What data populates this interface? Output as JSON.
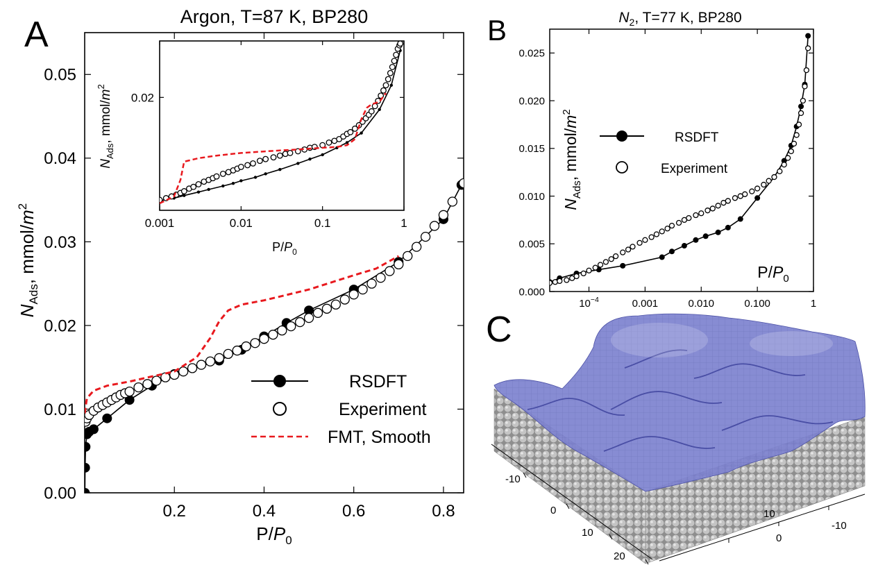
{
  "panels": {
    "A": {
      "letter": "A"
    },
    "B": {
      "letter": "B"
    },
    "C": {
      "letter": "C"
    }
  },
  "chart_data": [
    {
      "id": "A",
      "type": "line",
      "title": "Argon, T=87 K, BP280",
      "xlabel": "P/P0",
      "ylabel": "NAds, mmol/m2",
      "xlim": [
        0,
        0.845
      ],
      "ylim": [
        0,
        0.055
      ],
      "xticks": [
        0.2,
        0.4,
        0.6,
        0.8
      ],
      "xtick_labels": [
        "0.2",
        "0.4",
        "0.6",
        "0.8"
      ],
      "yticks": [
        0,
        0.01,
        0.02,
        0.03,
        0.04,
        0.05
      ],
      "ytick_labels": [
        "0.00",
        "0.01",
        "0.02",
        "0.03",
        "0.04",
        "0.05"
      ],
      "grid": false,
      "legend_position": "bottom-right",
      "legend": [
        "RSDFT",
        "Experiment",
        "FMT, Smooth"
      ],
      "series": [
        {
          "name": "RSDFT",
          "style": "line-filled-markers",
          "color": "#000000",
          "x": [
            0.0005,
            0.001,
            0.002,
            0.005,
            0.01,
            0.02,
            0.05,
            0.1,
            0.15,
            0.2,
            0.3,
            0.35,
            0.4,
            0.45,
            0.5,
            0.6,
            0.7,
            0.8,
            0.84
          ],
          "y": [
            0.0,
            0.003,
            0.0055,
            0.007,
            0.0073,
            0.0076,
            0.0089,
            0.0111,
            0.0128,
            0.0142,
            0.0158,
            0.0171,
            0.0187,
            0.0203,
            0.0218,
            0.0243,
            0.0276,
            0.0327,
            0.0368
          ]
        },
        {
          "name": "Experiment",
          "style": "open-markers",
          "color": "#000000",
          "x": [
            0.002,
            0.005,
            0.01,
            0.02,
            0.03,
            0.04,
            0.05,
            0.06,
            0.07,
            0.08,
            0.09,
            0.1,
            0.12,
            0.14,
            0.16,
            0.18,
            0.2,
            0.22,
            0.24,
            0.26,
            0.28,
            0.3,
            0.32,
            0.34,
            0.36,
            0.38,
            0.4,
            0.42,
            0.44,
            0.46,
            0.48,
            0.5,
            0.52,
            0.54,
            0.56,
            0.58,
            0.6,
            0.62,
            0.64,
            0.66,
            0.68,
            0.7,
            0.72,
            0.74,
            0.76,
            0.78,
            0.8,
            0.82,
            0.845
          ],
          "y": [
            0.0085,
            0.0089,
            0.0093,
            0.0098,
            0.0102,
            0.0105,
            0.0108,
            0.0111,
            0.0114,
            0.0117,
            0.0119,
            0.0121,
            0.0126,
            0.013,
            0.0134,
            0.0138,
            0.0141,
            0.0145,
            0.0149,
            0.0153,
            0.0157,
            0.0161,
            0.0166,
            0.017,
            0.0175,
            0.0179,
            0.0184,
            0.0189,
            0.0194,
            0.0199,
            0.0204,
            0.0209,
            0.0215,
            0.022,
            0.0225,
            0.0231,
            0.0237,
            0.0243,
            0.025,
            0.0257,
            0.0265,
            0.0273,
            0.0283,
            0.0294,
            0.0306,
            0.0319,
            0.0332,
            0.0348,
            0.037
          ]
        },
        {
          "name": "FMT, Smooth",
          "style": "dashed-line",
          "color": "#e8191e",
          "x": [
            0.0,
            0.005,
            0.02,
            0.05,
            0.1,
            0.15,
            0.2,
            0.25,
            0.28,
            0.3,
            0.32,
            0.35,
            0.4,
            0.5,
            0.6,
            0.65,
            0.7
          ],
          "y": [
            0.0095,
            0.0113,
            0.0122,
            0.0128,
            0.0133,
            0.0139,
            0.0145,
            0.0162,
            0.0185,
            0.0205,
            0.0218,
            0.0225,
            0.023,
            0.0243,
            0.026,
            0.0268,
            0.0283
          ]
        }
      ]
    },
    {
      "id": "A-inset",
      "type": "line",
      "title": "",
      "xlabel": "P/P0",
      "ylabel": "NAds, mmol/m2",
      "xscale": "log",
      "xlim": [
        0.001,
        1
      ],
      "ylim": [
        0.007,
        0.0265
      ],
      "xticks": [
        0.001,
        0.01,
        0.1,
        1
      ],
      "xtick_labels": [
        "0.001",
        "0.01",
        "0.1",
        "1"
      ],
      "yticks": [
        0.02
      ],
      "ytick_labels": [
        "0.02"
      ],
      "series": [
        {
          "name": "RSDFT",
          "style": "line-small-filled-markers",
          "color": "#000000",
          "x": [
            0.001,
            0.0015,
            0.002,
            0.003,
            0.004,
            0.006,
            0.008,
            0.01,
            0.015,
            0.02,
            0.03,
            0.05,
            0.07,
            0.1,
            0.15,
            0.2,
            0.3,
            0.5,
            0.7,
            0.9
          ],
          "y": [
            0.0081,
            0.0084,
            0.0087,
            0.0091,
            0.0094,
            0.0098,
            0.0101,
            0.0104,
            0.0108,
            0.0112,
            0.0117,
            0.0124,
            0.0129,
            0.0134,
            0.0142,
            0.0148,
            0.0159,
            0.0186,
            0.0214,
            0.0254
          ]
        },
        {
          "name": "Experiment",
          "style": "open-markers",
          "color": "#000000",
          "x": [
            0.001,
            0.0012,
            0.0014,
            0.0016,
            0.0018,
            0.002,
            0.0023,
            0.0026,
            0.003,
            0.0035,
            0.004,
            0.0045,
            0.005,
            0.006,
            0.007,
            0.008,
            0.009,
            0.01,
            0.012,
            0.014,
            0.017,
            0.02,
            0.025,
            0.03,
            0.035,
            0.04,
            0.05,
            0.06,
            0.07,
            0.08,
            0.1,
            0.12,
            0.14,
            0.16,
            0.18,
            0.2,
            0.22,
            0.25,
            0.28,
            0.31,
            0.34,
            0.37,
            0.4,
            0.44,
            0.48,
            0.52,
            0.56,
            0.6,
            0.64,
            0.68,
            0.72,
            0.76,
            0.8,
            0.84,
            0.88,
            0.9
          ],
          "y": [
            0.0082,
            0.0084,
            0.0086,
            0.0088,
            0.009,
            0.0092,
            0.0095,
            0.0097,
            0.01,
            0.0103,
            0.0105,
            0.0107,
            0.0109,
            0.0112,
            0.0114,
            0.0116,
            0.0118,
            0.012,
            0.0122,
            0.0124,
            0.0127,
            0.0129,
            0.0131,
            0.0133,
            0.0135,
            0.0136,
            0.0138,
            0.014,
            0.0142,
            0.0143,
            0.0145,
            0.0148,
            0.015,
            0.0152,
            0.0155,
            0.0158,
            0.016,
            0.0164,
            0.0168,
            0.0172,
            0.0176,
            0.018,
            0.0184,
            0.019,
            0.0196,
            0.0202,
            0.0208,
            0.0214,
            0.0221,
            0.0228,
            0.0235,
            0.0242,
            0.0249,
            0.0256,
            0.026,
            0.0262
          ]
        },
        {
          "name": "FMT, Smooth",
          "style": "dashed-line",
          "color": "#e8191e",
          "x": [
            0.001,
            0.0015,
            0.0018,
            0.002,
            0.003,
            0.005,
            0.01,
            0.03,
            0.05,
            0.1,
            0.15,
            0.2,
            0.25,
            0.3,
            0.35,
            0.4,
            0.5,
            0.6
          ],
          "y": [
            0.0078,
            0.0086,
            0.0105,
            0.0126,
            0.013,
            0.0133,
            0.0136,
            0.0139,
            0.014,
            0.0142,
            0.0143,
            0.0145,
            0.0152,
            0.0175,
            0.0188,
            0.0192,
            0.0195,
            0.0205
          ]
        }
      ]
    },
    {
      "id": "B",
      "type": "line",
      "title": "N2, T=77 K, BP280",
      "xlabel": "P/P0",
      "ylabel": "NAds, mmol/m2",
      "xscale": "log",
      "xlim": [
        2e-05,
        1
      ],
      "ylim": [
        0,
        0.0275
      ],
      "xticks": [
        0.0001,
        0.001,
        0.01,
        0.1,
        1
      ],
      "xtick_labels": [
        "10-4",
        "0.001",
        "0.010",
        "0.100",
        "1"
      ],
      "yticks": [
        0,
        0.005,
        0.01,
        0.015,
        0.02,
        0.025
      ],
      "ytick_labels": [
        "0.000",
        "0.005",
        "0.010",
        "0.015",
        "0.020",
        "0.025"
      ],
      "grid": false,
      "legend_position": "middle-left",
      "legend": [
        "RSDFT",
        "Experiment"
      ],
      "series": [
        {
          "name": "RSDFT",
          "style": "line-filled-markers",
          "color": "#000000",
          "x": [
            2e-05,
            3e-05,
            6e-05,
            0.00015,
            0.0004,
            0.002,
            0.003,
            0.005,
            0.008,
            0.012,
            0.02,
            0.03,
            0.05,
            0.1,
            0.2,
            0.3,
            0.4,
            0.5,
            0.6,
            0.7,
            0.8
          ],
          "y": [
            0.001,
            0.0014,
            0.0019,
            0.0023,
            0.0027,
            0.0036,
            0.0042,
            0.0048,
            0.0054,
            0.0058,
            0.0062,
            0.0067,
            0.0076,
            0.0098,
            0.012,
            0.0137,
            0.0153,
            0.0173,
            0.0194,
            0.0217,
            0.0268
          ]
        },
        {
          "name": "Experiment",
          "style": "open-markers",
          "color": "#000000",
          "x": [
            2e-05,
            2.5e-05,
            3e-05,
            4e-05,
            5e-05,
            6e-05,
            8e-05,
            0.0001,
            0.00013,
            0.00016,
            0.0002,
            0.00025,
            0.0003,
            0.0004,
            0.0005,
            0.0006,
            0.0008,
            0.001,
            0.0013,
            0.0016,
            0.002,
            0.0025,
            0.003,
            0.004,
            0.005,
            0.006,
            0.008,
            0.01,
            0.013,
            0.016,
            0.02,
            0.025,
            0.03,
            0.04,
            0.05,
            0.06,
            0.08,
            0.1,
            0.13,
            0.16,
            0.2,
            0.25,
            0.3,
            0.35,
            0.4,
            0.45,
            0.5,
            0.55,
            0.6,
            0.65,
            0.7,
            0.75,
            0.8,
            0.85
          ],
          "y": [
            0.0009,
            0.001,
            0.0011,
            0.0012,
            0.0014,
            0.0016,
            0.0019,
            0.0022,
            0.0025,
            0.0028,
            0.0031,
            0.0034,
            0.0037,
            0.0041,
            0.0044,
            0.0047,
            0.0051,
            0.0054,
            0.0057,
            0.006,
            0.0063,
            0.0066,
            0.0069,
            0.0072,
            0.0075,
            0.0077,
            0.008,
            0.0082,
            0.0085,
            0.0087,
            0.009,
            0.0093,
            0.0095,
            0.0098,
            0.01,
            0.0102,
            0.0105,
            0.0108,
            0.0112,
            0.0116,
            0.012,
            0.0126,
            0.0133,
            0.014,
            0.0147,
            0.0155,
            0.0164,
            0.0175,
            0.0187,
            0.02,
            0.0215,
            0.0232,
            0.0255,
            0.0278
          ]
        }
      ]
    }
  ],
  "surface3d": {
    "title": "",
    "surface_color": "#7a7fc8",
    "atom_color": "#b0b0b0",
    "x_tick_labels": [
      "-10",
      "0",
      "10",
      "20"
    ],
    "y_tick_labels": [
      "-10",
      "0",
      "10"
    ]
  }
}
